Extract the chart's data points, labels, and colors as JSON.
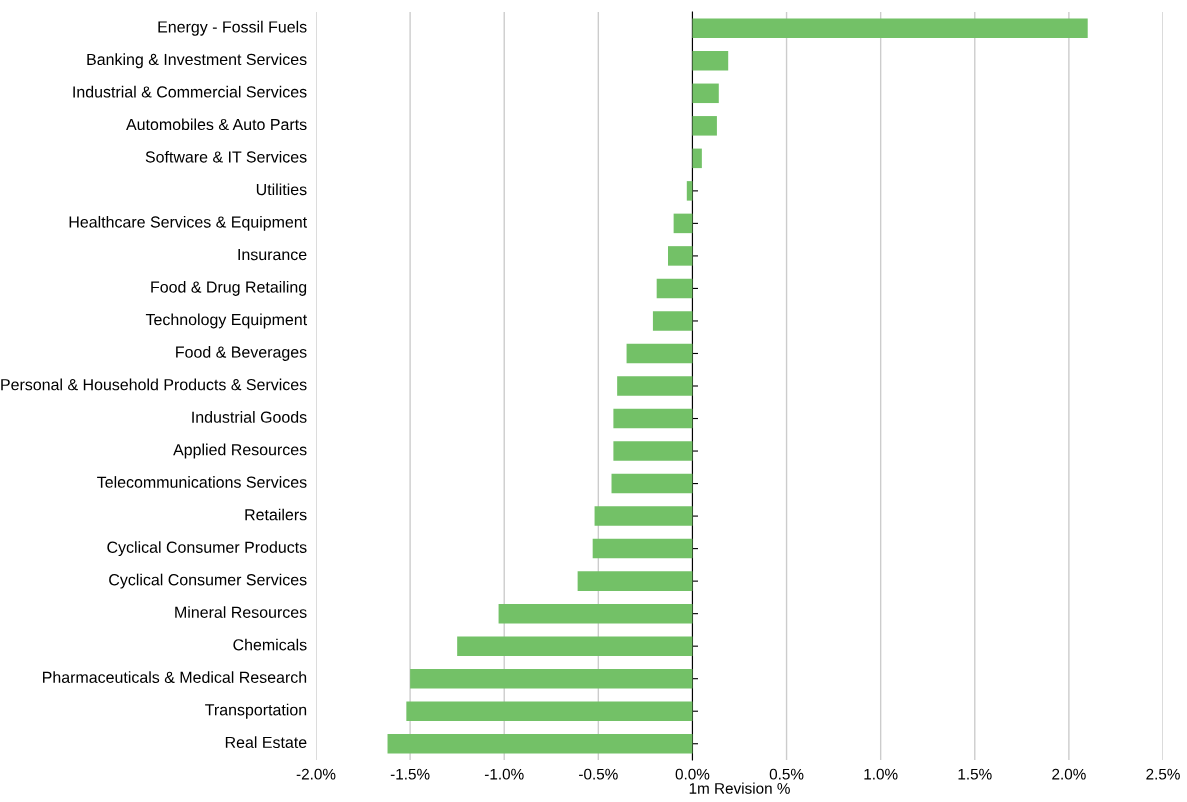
{
  "chart_data": {
    "type": "bar",
    "orientation": "horizontal",
    "xlabel": "1m Revision %",
    "categories": [
      "Energy - Fossil Fuels",
      "Banking & Investment Services",
      "Industrial & Commercial Services",
      "Automobiles & Auto Parts",
      "Software & IT Services",
      "Utilities",
      "Healthcare Services & Equipment",
      "Insurance",
      "Food & Drug Retailing",
      "Technology Equipment",
      "Food & Beverages",
      "Personal & Household Products & Services",
      "Industrial Goods",
      "Applied Resources",
      "Telecommunications Services",
      "Retailers",
      "Cyclical Consumer Products",
      "Cyclical Consumer Services",
      "Mineral Resources",
      "Chemicals",
      "Pharmaceuticals & Medical Research",
      "Transportation",
      "Real Estate"
    ],
    "values": [
      2.1,
      0.19,
      0.14,
      0.13,
      0.05,
      -0.03,
      -0.1,
      -0.13,
      -0.19,
      -0.21,
      -0.35,
      -0.4,
      -0.42,
      -0.42,
      -0.43,
      -0.52,
      -0.53,
      -0.61,
      -1.03,
      -1.25,
      -1.5,
      -1.52,
      -1.62
    ],
    "color": "#73c167",
    "xlim": [
      -2.0,
      2.5
    ],
    "xticks": [
      {
        "value": -2.0,
        "label": "-2.0%"
      },
      {
        "value": -1.5,
        "label": "-1.5%"
      },
      {
        "value": -1.0,
        "label": "-1.0%"
      },
      {
        "value": -0.5,
        "label": "-0.5%"
      },
      {
        "value": 0.0,
        "label": "0.0%"
      },
      {
        "value": 0.5,
        "label": "0.5%"
      },
      {
        "value": 1.0,
        "label": "1.0%"
      },
      {
        "value": 1.5,
        "label": "1.5%"
      },
      {
        "value": 2.0,
        "label": "2.0%"
      },
      {
        "value": 2.5,
        "label": "2.5%"
      }
    ],
    "grid": "x"
  }
}
